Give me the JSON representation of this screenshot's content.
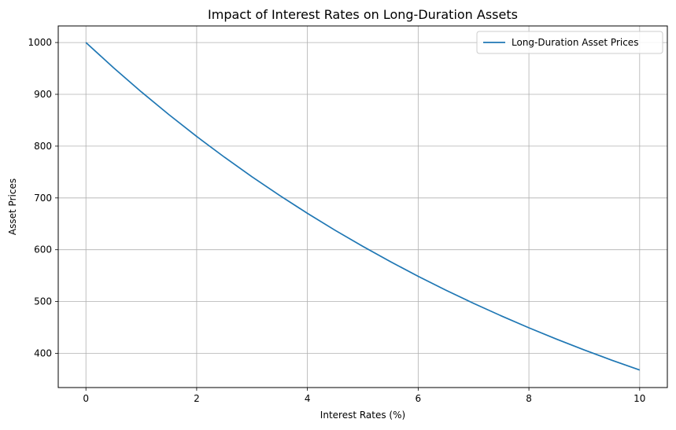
{
  "chart_data": {
    "type": "line",
    "title": "Impact of Interest Rates on Long-Duration Assets",
    "xlabel": "Interest Rates (%)",
    "ylabel": "Asset Prices",
    "xlim": [
      -0.5,
      10.5
    ],
    "ylim": [
      334,
      1032
    ],
    "xticks": [
      0,
      2,
      4,
      6,
      8,
      10
    ],
    "yticks": [
      400,
      500,
      600,
      700,
      800,
      900,
      1000
    ],
    "grid": true,
    "legend_position": "top-right",
    "series": [
      {
        "name": "Long-Duration Asset Prices",
        "color": "#1f77b4",
        "x": [
          0,
          0.5,
          1,
          1.5,
          2,
          2.5,
          3,
          3.5,
          4,
          4.5,
          5,
          5.5,
          6,
          6.5,
          7,
          7.5,
          8,
          8.5,
          9,
          9.5,
          10
        ],
        "y": [
          1000,
          951.2,
          904.8,
          860.7,
          818.7,
          778.8,
          740.8,
          704.7,
          670.3,
          637.6,
          606.5,
          576.9,
          548.8,
          522.0,
          496.6,
          472.4,
          449.3,
          427.4,
          406.6,
          386.7,
          367.9
        ]
      }
    ]
  }
}
